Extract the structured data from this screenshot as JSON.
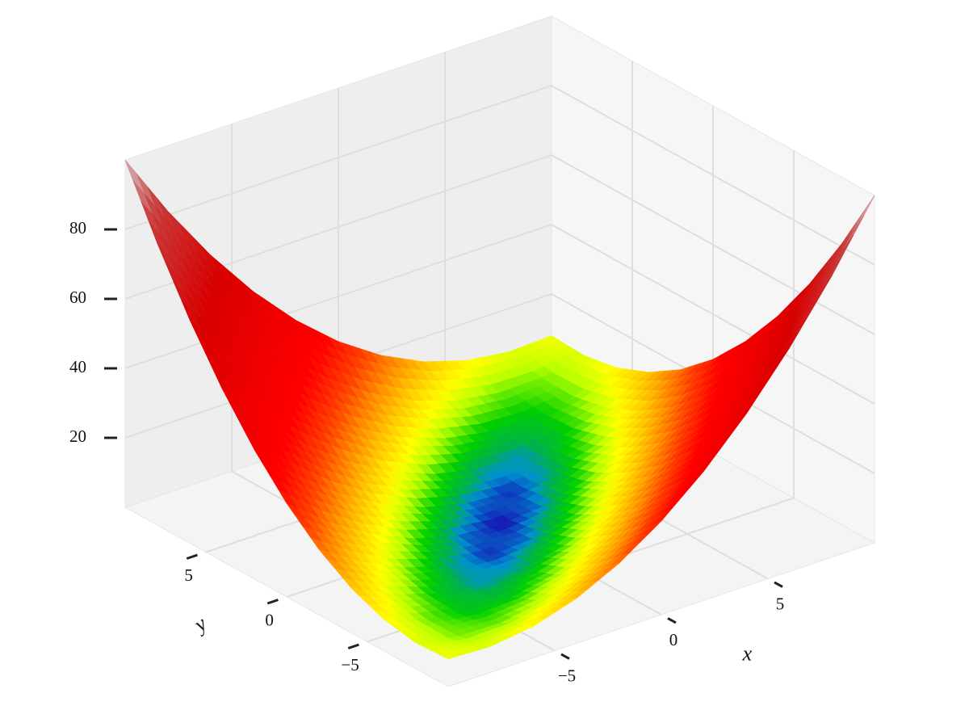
{
  "chart_data": {
    "type": "surface3d",
    "x": [
      -10,
      -8,
      -6,
      -4,
      -2,
      0,
      2,
      4,
      6,
      8,
      10
    ],
    "y": [
      -10,
      -8,
      -6,
      -4,
      -2,
      0,
      2,
      4,
      6,
      8,
      10
    ],
    "z": [
      [
        8,
        7.48,
        9.12,
        12.92,
        18.88,
        27,
        37.28,
        49.72,
        64.32,
        81.08,
        100
      ],
      [
        7.48,
        5.12,
        4.92,
        6.88,
        11,
        17.28,
        25.72,
        36.32,
        49.08,
        64,
        81.08
      ],
      [
        9.12,
        4.92,
        2.88,
        3,
        5.28,
        9.72,
        16.32,
        25.08,
        36,
        49.08,
        64.32
      ],
      [
        12.92,
        6.88,
        3,
        1.28,
        1.72,
        4.32,
        9.08,
        16,
        25.08,
        36.32,
        49.72
      ],
      [
        18.88,
        11,
        5.28,
        1.72,
        0.32,
        1.08,
        4,
        9.08,
        16.32,
        25.72,
        37.28
      ],
      [
        27,
        17.28,
        9.72,
        4.32,
        1.08,
        0,
        1.08,
        4.32,
        9.72,
        17.28,
        27
      ],
      [
        37.28,
        25.72,
        16.32,
        9.08,
        4,
        1.08,
        0.32,
        1.72,
        5.28,
        11,
        18.88
      ],
      [
        49.72,
        36.32,
        25.08,
        16,
        9.08,
        4.32,
        1.72,
        1.28,
        3,
        6.88,
        12.92
      ],
      [
        64.32,
        49.08,
        36,
        25.08,
        16.32,
        9.72,
        5.28,
        3,
        2.88,
        4.92,
        9.12
      ],
      [
        81.08,
        64,
        49.08,
        36.32,
        25.72,
        17.28,
        11,
        6.88,
        4.92,
        5.12,
        7.48
      ],
      [
        100,
        81.08,
        64.32,
        49.72,
        37.28,
        27,
        18.88,
        12.92,
        9.12,
        7.48,
        8
      ]
    ],
    "xlim": [
      -10,
      10
    ],
    "ylim": [
      -10,
      10
    ],
    "zlim": [
      0,
      100
    ],
    "xticks": [
      {
        "value": -5,
        "label": "−5"
      },
      0,
      5
    ],
    "yticks": [
      {
        "value": -5,
        "label": "−5"
      },
      0,
      5
    ],
    "zticks": [
      20,
      40,
      60,
      80
    ],
    "xlabel": "x",
    "ylabel": "y",
    "grid": true,
    "pane_color": "#f1f1f1",
    "colormap": [
      [
        0,
        "#1a00b0"
      ],
      [
        1.2,
        "#0090d0"
      ],
      [
        2,
        "#00b050"
      ],
      [
        3.5,
        "#00d000"
      ],
      [
        6,
        "#b8ff00"
      ],
      [
        8.5,
        "#ffff00"
      ],
      [
        14,
        "#ffb000"
      ],
      [
        22,
        "#ff4000"
      ],
      [
        30,
        "#ff0000"
      ],
      [
        60,
        "#d80000"
      ],
      [
        85,
        "#c83a3a"
      ],
      [
        100,
        "#d4c4c4"
      ]
    ]
  }
}
